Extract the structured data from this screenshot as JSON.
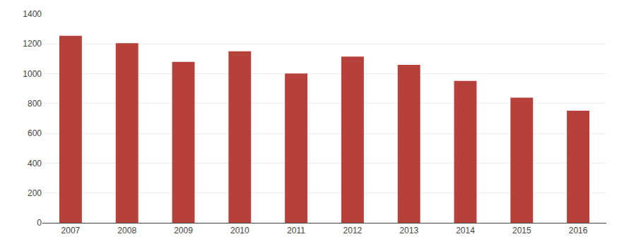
{
  "chart_data": {
    "type": "bar",
    "categories": [
      "2007",
      "2008",
      "2009",
      "2010",
      "2011",
      "2012",
      "2013",
      "2014",
      "2015",
      "2016"
    ],
    "values": [
      1255,
      1205,
      1080,
      1150,
      1002,
      1115,
      1060,
      952,
      840,
      752
    ],
    "color": "#b5413a",
    "ylim": [
      0,
      1400
    ],
    "yticks": [
      0,
      200,
      400,
      600,
      800,
      1000,
      1200,
      1400
    ],
    "grid": true
  }
}
